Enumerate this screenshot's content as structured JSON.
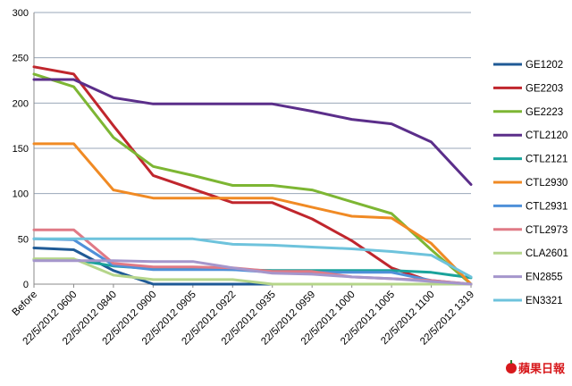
{
  "chart_data": {
    "type": "line",
    "title": "",
    "xlabel": "",
    "ylabel": "",
    "ylim": [
      0,
      300
    ],
    "yticks": [
      0,
      50,
      100,
      150,
      200,
      250,
      300
    ],
    "grid": true,
    "legend_position": "right",
    "categories": [
      "Before",
      "22/5/2012 0600",
      "22/5/2012 0840",
      "22/5/2012 0900",
      "22/5/2012 0905",
      "22/5/2012 0922",
      "22/5/2012 0935",
      "22/5/2012 0959",
      "22/5/2012 1000",
      "22/5/2012 1005",
      "22/5/2012 1100",
      "22/5/2012 1319"
    ],
    "series": [
      {
        "name": "GE1202",
        "color": "#1f5a96",
        "values": [
          40,
          38,
          15,
          0,
          0,
          0,
          0,
          0,
          0,
          0,
          0,
          0
        ]
      },
      {
        "name": "GE2203",
        "color": "#c0262d",
        "values": [
          240,
          232,
          175,
          120,
          105,
          90,
          90,
          72,
          48,
          18,
          3,
          0
        ]
      },
      {
        "name": "GE2223",
        "color": "#7db633",
        "values": [
          232,
          218,
          162,
          130,
          120,
          109,
          109,
          104,
          91,
          78,
          38,
          0
        ]
      },
      {
        "name": "CTL2120",
        "color": "#5b2e8a",
        "values": [
          226,
          226,
          206,
          199,
          199,
          199,
          199,
          191,
          182,
          177,
          157,
          110
        ]
      },
      {
        "name": "CTL2121",
        "color": "#1aa39b",
        "values": [
          27,
          27,
          20,
          17,
          17,
          16,
          15,
          15,
          15,
          15,
          13,
          7
        ]
      },
      {
        "name": "CTL2930",
        "color": "#f08a24",
        "values": [
          155,
          155,
          104,
          95,
          95,
          95,
          95,
          85,
          75,
          73,
          45,
          0
        ]
      },
      {
        "name": "CTL2931",
        "color": "#4f90d9",
        "values": [
          50,
          49,
          21,
          16,
          16,
          16,
          13,
          13,
          13,
          13,
          4,
          0
        ]
      },
      {
        "name": "CTL2973",
        "color": "#e07a86",
        "values": [
          60,
          60,
          23,
          19,
          19,
          18,
          14,
          14,
          8,
          6,
          4,
          0
        ]
      },
      {
        "name": "CLA2601",
        "color": "#b5d58a",
        "values": [
          28,
          28,
          10,
          5,
          5,
          5,
          0,
          0,
          0,
          0,
          0,
          0
        ]
      },
      {
        "name": "EN2855",
        "color": "#a596cc",
        "values": [
          26,
          26,
          26,
          25,
          25,
          18,
          12,
          11,
          8,
          6,
          3,
          0
        ]
      },
      {
        "name": "EN3321",
        "color": "#6ec3dc",
        "values": [
          50,
          50,
          50,
          50,
          50,
          44,
          43,
          41,
          39,
          36,
          32,
          8
        ]
      }
    ]
  },
  "watermark": {
    "text": "蘋果日報",
    "icon": "apple-icon",
    "color": "#d7191c"
  }
}
